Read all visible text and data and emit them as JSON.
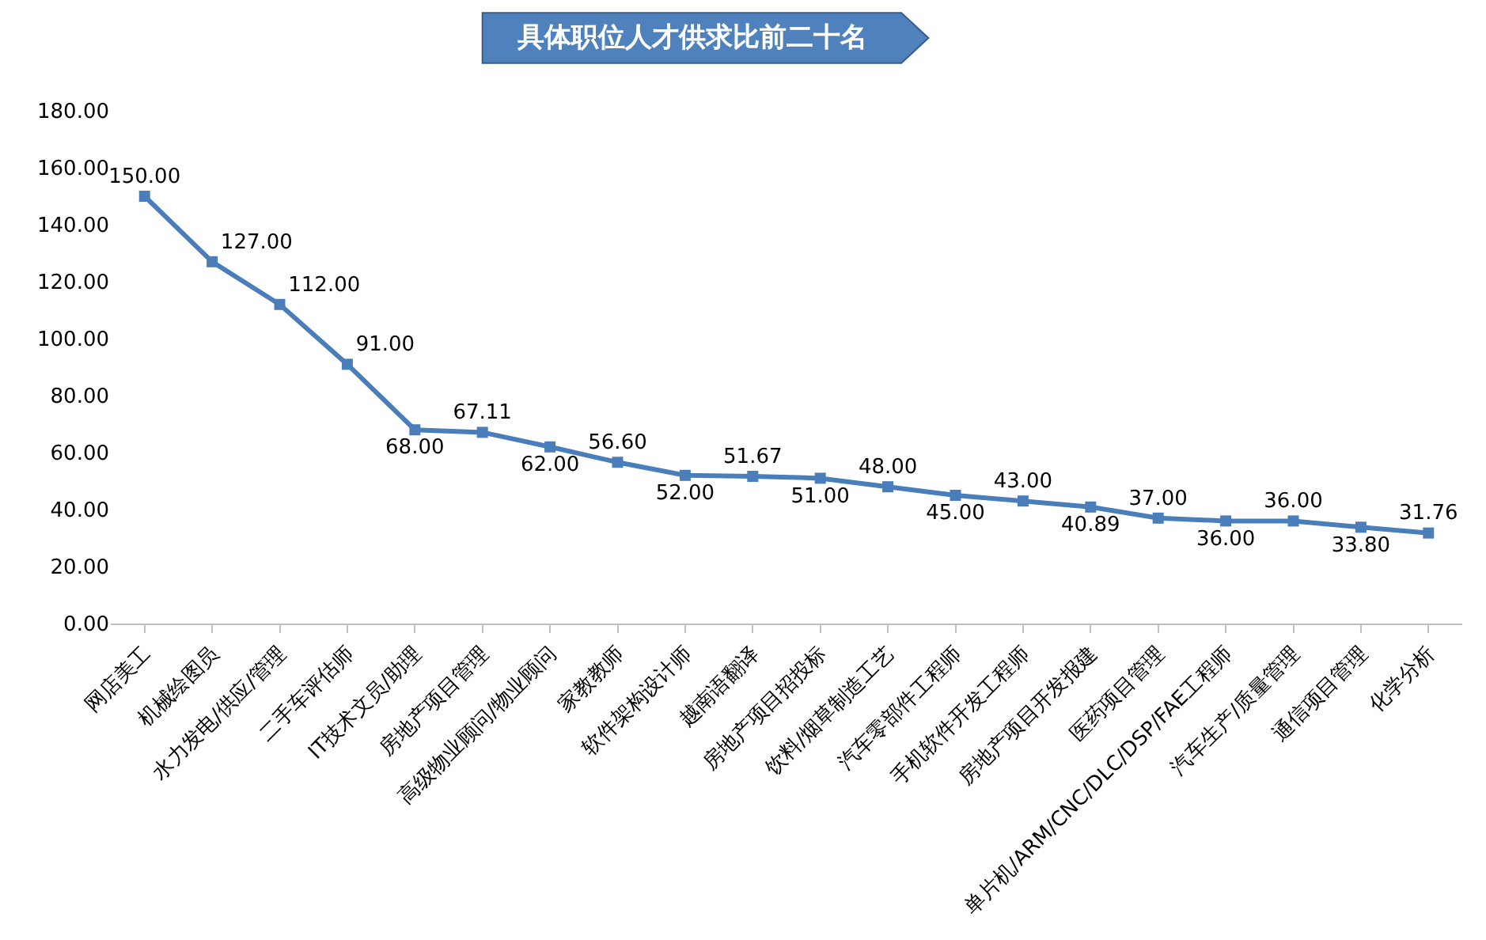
{
  "chart_data": {
    "type": "line",
    "title": "具体职位人才供求比前二十名",
    "categories": [
      "网店美工",
      "机械绘图员",
      "水力发电/供应/管理",
      "二手车评估师",
      "IT技术文员/助理",
      "房地产项目管理",
      "高级物业顾问/物业顾问",
      "家教教师",
      "软件架构设计师",
      "越南语翻译",
      "房地产项目招投标",
      "饮料/烟草制造工艺",
      "汽车零部件工程师",
      "手机软件开发工程师",
      "房地产项目开发报建",
      "医药项目管理",
      "单片机/ARM/CNC/DLC/DSP/FAE工程师",
      "汽车生产/质量管理",
      "通信项目管理",
      "化学分析"
    ],
    "series": [
      {
        "color": "#4a7ebb",
        "values": [
          150,
          127,
          112,
          91,
          68,
          67.11,
          62,
          56.6,
          52,
          51.67,
          51,
          48,
          45,
          43,
          40.89,
          37,
          36,
          36,
          33.8,
          31.76
        ]
      }
    ],
    "ylim": [
      0,
      180
    ],
    "yticks": [
      {
        "value": 0,
        "label": "0.00"
      },
      {
        "value": 20,
        "label": "20.00"
      },
      {
        "value": 40,
        "label": "40.00"
      },
      {
        "value": 60,
        "label": "60.00"
      },
      {
        "value": 80,
        "label": "80.00"
      },
      {
        "value": 100,
        "label": "100.00"
      },
      {
        "value": 120,
        "label": "120.00"
      },
      {
        "value": 140,
        "label": "140.00"
      },
      {
        "value": 160,
        "label": "160.00"
      },
      {
        "value": 180,
        "label": "180.00"
      }
    ],
    "value_labels": [
      "150.00",
      "127.00",
      "112.00",
      "91.00",
      "68.00",
      "67.11",
      "62.00",
      "56.60",
      "52.00",
      "51.67",
      "51.00",
      "48.00",
      "45.00",
      "43.00",
      "40.89",
      "37.00",
      "36.00",
      "36.00",
      "33.80",
      "31.76"
    ],
    "marker": "square",
    "line_style": "solid"
  }
}
